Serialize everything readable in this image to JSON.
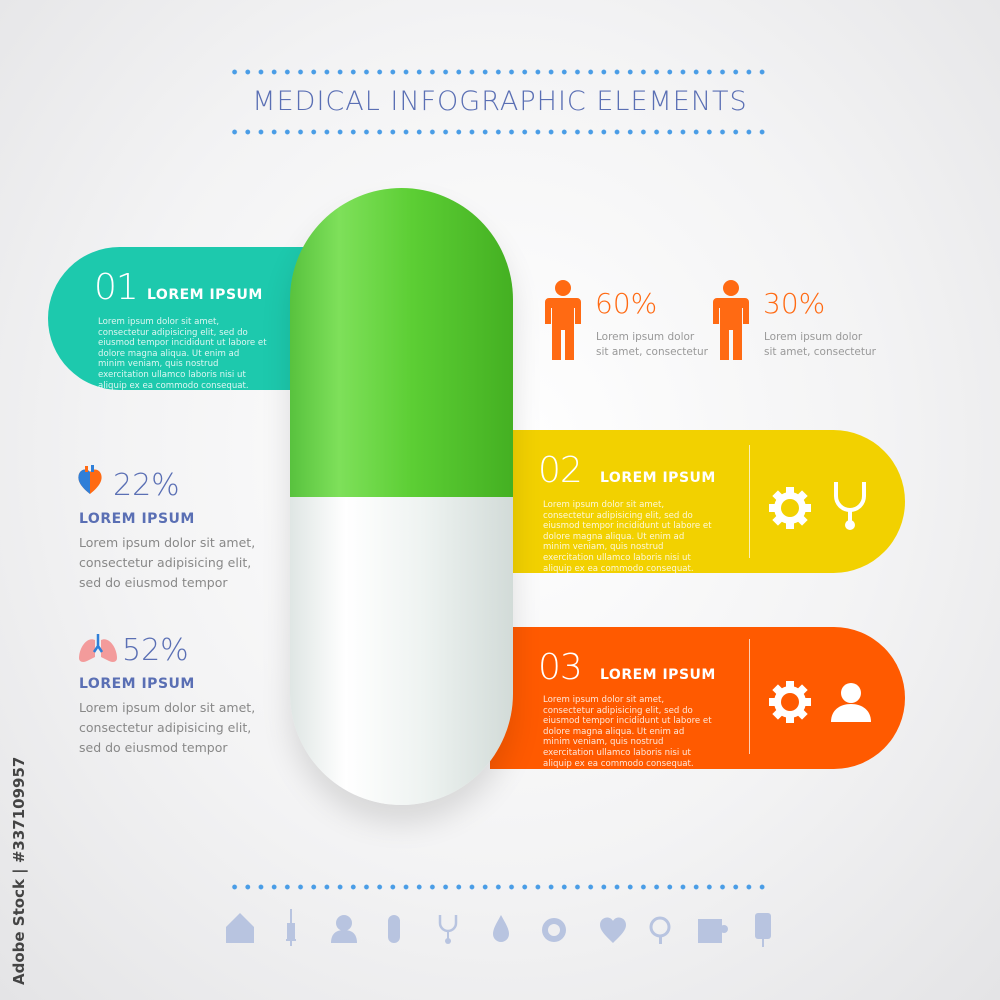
{
  "title": "MEDICAL INFOGRAPHIC ELEMENTS",
  "colors": {
    "teal": "#1dc9ad",
    "yellow": "#f2d100",
    "orange": "#ff5a00",
    "green": "#5cce34",
    "blue_text": "#5a6fb4",
    "icon_gray": "#b8c4e0"
  },
  "cards": [
    {
      "number": "01",
      "heading": "LOREM IPSUM",
      "body": "Lorem ipsum dolor sit amet, consectetur adipisicing elit, sed do eiusmod tempor incididunt ut labore et dolore magna aliqua. Ut enim ad minim veniam, quis nostrud exercitation ullamco laboris nisi ut aliquip ex ea commodo consequat."
    },
    {
      "number": "02",
      "heading": "LOREM IPSUM",
      "body": "Lorem ipsum dolor sit amet, consectetur adipisicing elit, sed do eiusmod tempor incididunt ut labore et dolore magna aliqua. Ut enim ad minim veniam, quis nostrud exercitation ullamco laboris nisi ut aliquip ex ea commodo consequat.",
      "icons": [
        "gear-icon",
        "stethoscope-icon"
      ]
    },
    {
      "number": "03",
      "heading": "LOREM IPSUM",
      "body": "Lorem ipsum dolor sit amet, consectetur adipisicing elit, sed do eiusmod tempor incididunt ut labore et dolore magna aliqua. Ut enim ad minim veniam, quis nostrud exercitation ullamco laboris nisi ut aliquip ex ea commodo consequat.",
      "icons": [
        "gear-icon",
        "user-icon"
      ]
    }
  ],
  "left_stats": [
    {
      "icon": "heart-icon",
      "value": "22%",
      "heading": "LOREM IPSUM",
      "body": [
        "Lorem ipsum dolor sit amet,",
        "consectetur adipisicing elit,",
        "sed do eiusmod tempor"
      ]
    },
    {
      "icon": "lungs-icon",
      "value": "52%",
      "heading": "LOREM IPSUM",
      "body": [
        "Lorem ipsum dolor sit amet,",
        "consectetur adipisicing elit,",
        "sed do eiusmod tempor"
      ]
    }
  ],
  "people_stats": [
    {
      "icon": "person-icon",
      "value": "60%",
      "body": [
        "Lorem ipsum dolor",
        "sit amet, consectetur"
      ]
    },
    {
      "icon": "person-icon",
      "value": "30%",
      "body": [
        "Lorem ipsum dolor",
        "sit amet, consectetur"
      ]
    }
  ],
  "bottom_icons": [
    "home-icon",
    "syringe-icon",
    "doctor-icon",
    "pill-icon",
    "stethoscope-icon",
    "drop-icon",
    "gear-icon",
    "heartbeat-icon",
    "magnifier-icon",
    "puzzle-icon",
    "iv-bag-icon"
  ],
  "watermark": "Adobe Stock | #337109957"
}
